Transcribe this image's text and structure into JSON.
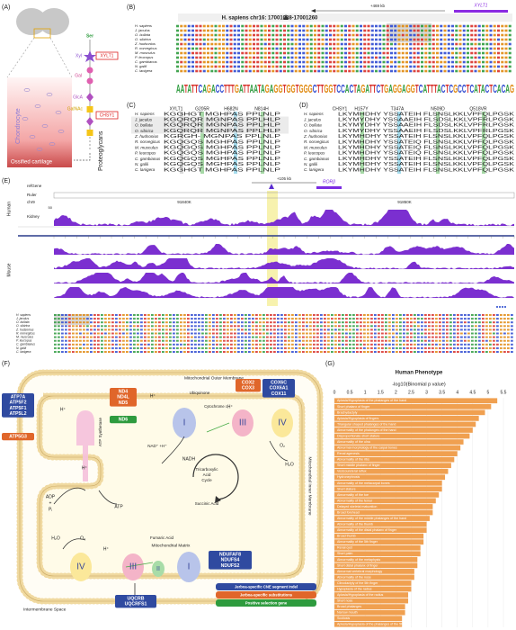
{
  "panel_labels": [
    "(A)",
    "(B)",
    "(C)",
    "(D)",
    "(E)",
    "(F)",
    "(G)"
  ],
  "species": [
    "H. sapiens",
    "J. jaculus",
    "O. bullata",
    "O. sibirica",
    "Z. hudsonius",
    "R. norvegicus",
    "M. musculus",
    "P. leucopus",
    "C. gambianus",
    "N. galili",
    "C. lanigera"
  ],
  "panel_a": {
    "ser": "Ser",
    "xyl": "Xyl",
    "gal": "Gal",
    "glca": "GlcA",
    "galnac": "GalNAc",
    "xylt1": "XYLT1",
    "chsy1": "CHSY1",
    "cell": "Chondrocyte",
    "tissue": "Ossified cartilage",
    "product": "Proteoglycans"
  },
  "panel_b": {
    "region": "H. sapiens chr16: 17001088-17001260",
    "distance": "+469 kb",
    "gene": "XYLT1",
    "logo": "AATATTCAGACCTTTGATTAATAGAGGTGGTGGGCTTGGTCCACTAGATTCTGAGGAGGTCATTTACTCGCCTCATACTCACAG"
  },
  "panel_c": {
    "header": [
      "XYLT1",
      "G205R",
      "H682N",
      "N814H"
    ],
    "rows": [
      "KGGHGT MGHPAS PPLNLP",
      "KGQRQR MGNPAS PPLHLP",
      "KGQRQR MGNPAS PPLHLP",
      "KGQRQR MGNPAS PPLHLP",
      "KGRGH- MGNPAS PPLNLP",
      "KGQGQS MGHPAS PPLNLP",
      "KGQGQS MGHPAS PPLNLP",
      "KGQGQS MGHPAS PPLNLP",
      "KGQGQS MGHPAS PPLNLP",
      "KGQGQS MGHPAS PPLNLP",
      "KGGHGT MGHPAS PPLNLP"
    ]
  },
  "panel_d": {
    "header": [
      "CHSY1",
      "H157Y",
      "T347A",
      "N509D",
      "Q518VR"
    ],
    "rows": [
      "LKYMHDHY YSSATEIH FLSNSLKKLVPFQLPGSK",
      "LKYMYDHY YSSAAEIH FLSDSLKKLVPFRLPGSK",
      "LKYMYDHY YSSAAEIH FLSDSLKKLVPFRLPGSK",
      "LKYMYDHY YSSAAEIH FLSDSLKKLVPFRLPGSK",
      "LKYMHDHY YSSATEIH FLSNSLKKLVPFQLPGSK",
      "LKYMHDHY YSSATEIQ FLSNSLKKLVPFQLPGSK",
      "LKYMHDHY YSSATEIQ FLSNSLKKLVPFQLPGSK",
      "LKYMHDHY YSSATEIQ FLSNSLKKLVPFQLPGSK",
      "LKYMHDHY YSSATEIH FLSNSLKKLVPFQLPGSK",
      "LKYMHDHY YSSATEIH FLSNSLKKLVPFQLPGSK",
      "LKYMHDHY YSSATEIH FLSNSLKKLVPFQLPGSK"
    ]
  },
  "panel_e": {
    "distance": "+105 kb",
    "gene": "RORβ",
    "tracks": [
      "refGene",
      "Ruler",
      "chr9",
      "Kidney"
    ],
    "coords": [
      "91840K",
      "91850K"
    ],
    "scale": "50",
    "groups": [
      "Human",
      "Mouse"
    ]
  },
  "panel_f": {
    "outer_membrane": "Mitochondrial Outer Membrane",
    "inner_membrane": "Mitochondrial Inner Membrane",
    "matrix": "Mitochondrial Matrix",
    "intermembrane": "Intermembrane Space",
    "atp_synthase": "ATP Synthetase",
    "adp": "ADP",
    "plus": "+",
    "pi": "Pᵢ",
    "atp": "ATP",
    "proton": "H⁺",
    "ubiquinone": "Ubiquinone",
    "cytochrome": "Cytochrome c",
    "nadh": "NADH",
    "nad": "NAD⁺ +H⁺",
    "tca": [
      "Tricarboxylic",
      "Acid",
      "Cycle"
    ],
    "succinic": "Succinic Acid",
    "fumaric": "Fumaric Acid",
    "o2": "O₂",
    "h2o": "H₂O",
    "complexes": [
      "I",
      "II",
      "III",
      "IV"
    ],
    "gene_groups": [
      {
        "genes": [
          "ATP7A",
          "ATP5F2",
          "ATP5F1",
          "ATP5L2"
        ],
        "color": "#2f4aa0"
      },
      {
        "genes": [
          "ATP5G3"
        ],
        "color": "#e0662a"
      },
      {
        "genes": [
          "ND4",
          "ND4L",
          "ND5"
        ],
        "color": "#e0662a"
      },
      {
        "genes": [
          "ND6"
        ],
        "color": "#2e9b3e"
      },
      {
        "genes": [
          "COX2",
          "COX3"
        ],
        "color": "#e0662a"
      },
      {
        "genes": [
          "COX6C",
          "COX6A1",
          "COX11"
        ],
        "color": "#2f4aa0"
      },
      {
        "genes": [
          "NDUFAF8",
          "NDUFS4",
          "NDUFS2"
        ],
        "color": "#2f4aa0"
      },
      {
        "genes": [
          "UQCRB",
          "UQCRFS1"
        ],
        "color": "#2f4aa0"
      }
    ],
    "legend": [
      {
        "label": "Jerboa-specific CNE segment indel",
        "color": "#2f4aa0"
      },
      {
        "label": "Jerboa-specific substitutions",
        "color": "#e0662a"
      },
      {
        "label": "Positive selection gene",
        "color": "#2e9b3e"
      }
    ]
  },
  "chart_data": {
    "type": "bar",
    "orientation": "horizontal",
    "title": "Human Phenotype",
    "xlabel": "-log10(Binomial p value)",
    "categories": [
      "Aplasia/Hypoplasia of the phalanges of the hand",
      "Short phalanx of finger",
      "Brachydactyly",
      "Aplasia/Hypoplasia of fingers",
      "Triangular shaped phalanges of the hand",
      "Abnormality of the phalanges of the hand",
      "Disproportionate short stature",
      "Abnormality of the ulna",
      "Abnormal morphology of the carpal bones",
      "Renal agenesis",
      "Abnormality of the ribs",
      "Short middle phalanx of finger",
      "Vesicoureteral reflux",
      "Hydronephrosis",
      "Abnormality of the metacarpal bones",
      "Short stature",
      "Abnormality of the toe",
      "Abnormality of the femur",
      "Delayed skeletal maturation",
      "Broad forehead",
      "Abnormality of the middle phalanges of the hand",
      "Abnormality of the thumb",
      "Abnormality of the distal phalanx of finger",
      "Broad thumb",
      "Abnormality of the 5th finger",
      "Renal cyst",
      "Short palm",
      "Abnormality of the metaphysis",
      "Short distal phalanx of finger",
      "Abnormal vertebral morphology",
      "Abnormality of the nose",
      "Clinodactyly of the 5th finger",
      "Hypoplasia of the radius",
      "Aplasia/Hypoplasia of the radius",
      "Short nose",
      "Broad phalanges",
      "Narrow mouth",
      "Scoliosis",
      "Aplasia/Hypoplasia of the phalanges of the 5th finger"
    ],
    "values": [
      5.3,
      5.1,
      4.9,
      4.7,
      4.6,
      4.5,
      4.4,
      4.2,
      4.1,
      4.0,
      3.9,
      3.8,
      3.7,
      3.6,
      3.5,
      3.5,
      3.4,
      3.3,
      3.2,
      3.2,
      3.1,
      3.0,
      3.0,
      2.9,
      2.9,
      2.8,
      2.8,
      2.7,
      2.7,
      2.6,
      2.6,
      2.5,
      2.5,
      2.4,
      2.4,
      2.3,
      2.3,
      2.2,
      2.2
    ],
    "color": "#f0a050",
    "xlim": [
      0,
      5.5
    ],
    "xticks": [
      0,
      0.5,
      1,
      1.5,
      2,
      2.5,
      3,
      3.5,
      4,
      4.5,
      5,
      5.5
    ],
    "grid": true
  }
}
